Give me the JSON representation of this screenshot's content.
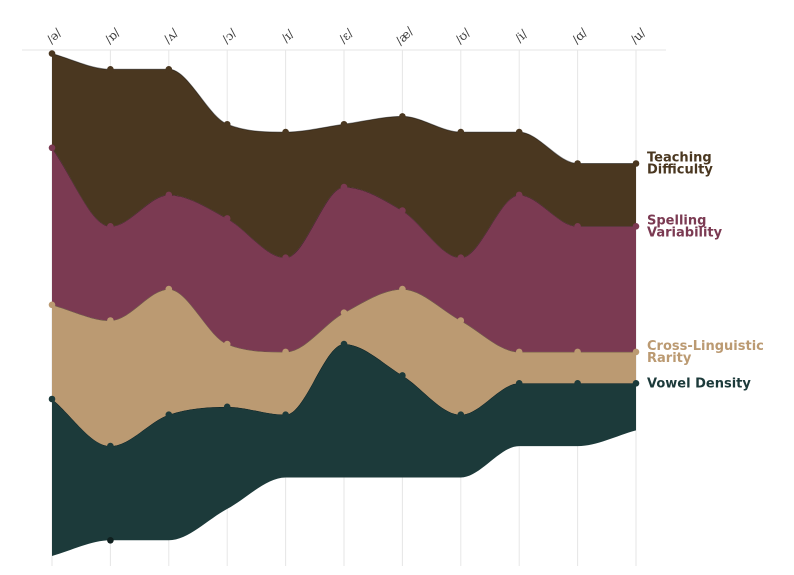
{
  "chart_data": {
    "type": "area",
    "subtype": "streamgraph",
    "title": "",
    "xlabel": "",
    "ylabel": "",
    "grid": "vertical",
    "legend": "inline-right",
    "categories": [
      "/ə/",
      "/ɒ/",
      "/ʌ/",
      "/ɔ/",
      "/ɪ/",
      "/ɛ/",
      "/æ/",
      "/ʊ/",
      "/i/",
      "/ɑ/",
      "/u/"
    ],
    "series": [
      {
        "name": "Vowel Density",
        "label_lines": [
          "Vowel Density"
        ],
        "color": "#1c3a3a",
        "values": [
          10,
          6,
          8,
          6.5,
          4,
          8.5,
          6.5,
          4,
          4,
          4,
          3
        ]
      },
      {
        "name": "Cross-Linguistic Rarity",
        "label_lines": [
          "Cross-Linguistic",
          "Rarity"
        ],
        "color": "#bb9a72",
        "values": [
          6,
          8,
          8,
          4,
          4,
          2,
          5.5,
          6,
          2,
          2,
          2
        ]
      },
      {
        "name": "Spelling Variability",
        "label_lines": [
          "Spelling",
          "Variability"
        ],
        "color": "#7b3a52",
        "values": [
          10,
          6,
          6,
          8,
          6,
          8,
          5,
          4,
          10,
          8,
          8
        ]
      },
      {
        "name": "Teaching Difficulty",
        "label_lines": [
          "Teaching",
          "Difficulty"
        ],
        "color": "#4a3720",
        "values": [
          6,
          10,
          8,
          6,
          8,
          4,
          6,
          8,
          4,
          4,
          4
        ]
      }
    ],
    "baseline": [
      0,
      1,
      1,
      3,
      5,
      5,
      5,
      5,
      7,
      7,
      8
    ]
  }
}
